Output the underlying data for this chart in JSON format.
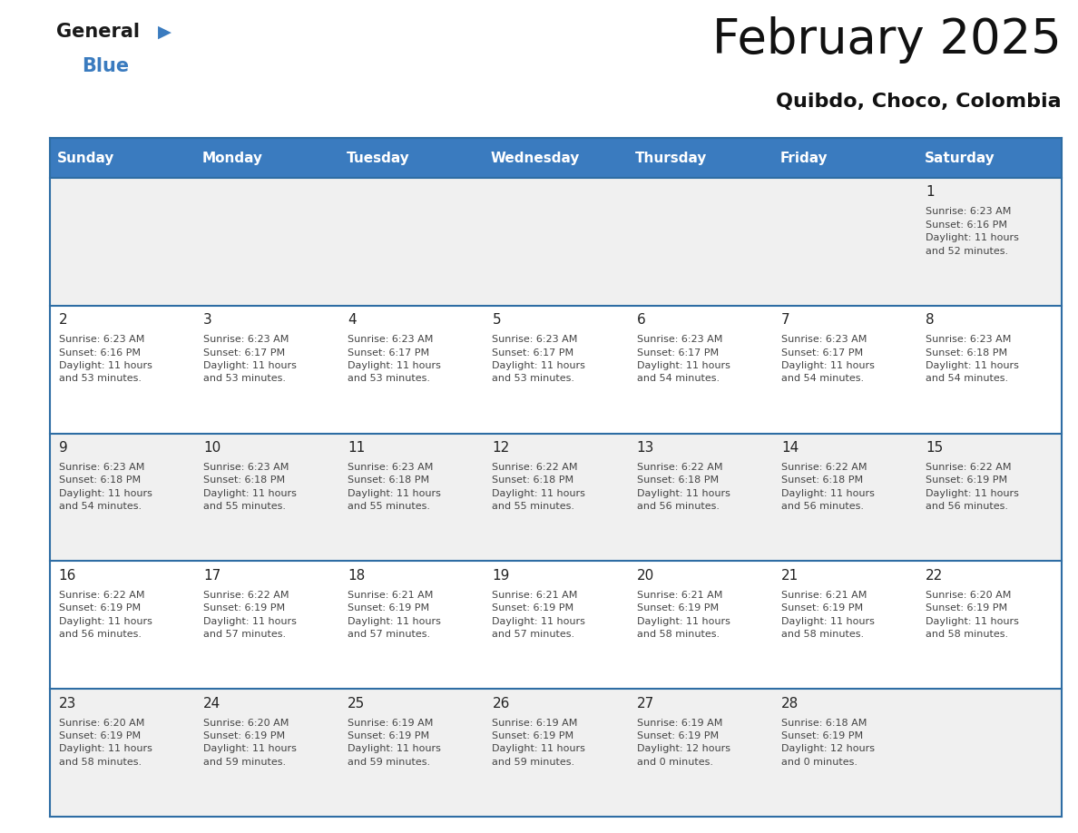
{
  "title": "February 2025",
  "subtitle": "Quibdo, Choco, Colombia",
  "header_bg_color": "#3A7BBF",
  "header_text_color": "#FFFFFF",
  "day_names": [
    "Sunday",
    "Monday",
    "Tuesday",
    "Wednesday",
    "Thursday",
    "Friday",
    "Saturday"
  ],
  "cell_bg_even": "#FFFFFF",
  "cell_bg_odd": "#F0F0F0",
  "grid_line_color": "#2E6DA4",
  "day_num_color": "#222222",
  "info_text_color": "#444444",
  "weeks": [
    [
      {
        "day": null,
        "info": null
      },
      {
        "day": null,
        "info": null
      },
      {
        "day": null,
        "info": null
      },
      {
        "day": null,
        "info": null
      },
      {
        "day": null,
        "info": null
      },
      {
        "day": null,
        "info": null
      },
      {
        "day": 1,
        "info": "Sunrise: 6:23 AM\nSunset: 6:16 PM\nDaylight: 11 hours\nand 52 minutes."
      }
    ],
    [
      {
        "day": 2,
        "info": "Sunrise: 6:23 AM\nSunset: 6:16 PM\nDaylight: 11 hours\nand 53 minutes."
      },
      {
        "day": 3,
        "info": "Sunrise: 6:23 AM\nSunset: 6:17 PM\nDaylight: 11 hours\nand 53 minutes."
      },
      {
        "day": 4,
        "info": "Sunrise: 6:23 AM\nSunset: 6:17 PM\nDaylight: 11 hours\nand 53 minutes."
      },
      {
        "day": 5,
        "info": "Sunrise: 6:23 AM\nSunset: 6:17 PM\nDaylight: 11 hours\nand 53 minutes."
      },
      {
        "day": 6,
        "info": "Sunrise: 6:23 AM\nSunset: 6:17 PM\nDaylight: 11 hours\nand 54 minutes."
      },
      {
        "day": 7,
        "info": "Sunrise: 6:23 AM\nSunset: 6:17 PM\nDaylight: 11 hours\nand 54 minutes."
      },
      {
        "day": 8,
        "info": "Sunrise: 6:23 AM\nSunset: 6:18 PM\nDaylight: 11 hours\nand 54 minutes."
      }
    ],
    [
      {
        "day": 9,
        "info": "Sunrise: 6:23 AM\nSunset: 6:18 PM\nDaylight: 11 hours\nand 54 minutes."
      },
      {
        "day": 10,
        "info": "Sunrise: 6:23 AM\nSunset: 6:18 PM\nDaylight: 11 hours\nand 55 minutes."
      },
      {
        "day": 11,
        "info": "Sunrise: 6:23 AM\nSunset: 6:18 PM\nDaylight: 11 hours\nand 55 minutes."
      },
      {
        "day": 12,
        "info": "Sunrise: 6:22 AM\nSunset: 6:18 PM\nDaylight: 11 hours\nand 55 minutes."
      },
      {
        "day": 13,
        "info": "Sunrise: 6:22 AM\nSunset: 6:18 PM\nDaylight: 11 hours\nand 56 minutes."
      },
      {
        "day": 14,
        "info": "Sunrise: 6:22 AM\nSunset: 6:18 PM\nDaylight: 11 hours\nand 56 minutes."
      },
      {
        "day": 15,
        "info": "Sunrise: 6:22 AM\nSunset: 6:19 PM\nDaylight: 11 hours\nand 56 minutes."
      }
    ],
    [
      {
        "day": 16,
        "info": "Sunrise: 6:22 AM\nSunset: 6:19 PM\nDaylight: 11 hours\nand 56 minutes."
      },
      {
        "day": 17,
        "info": "Sunrise: 6:22 AM\nSunset: 6:19 PM\nDaylight: 11 hours\nand 57 minutes."
      },
      {
        "day": 18,
        "info": "Sunrise: 6:21 AM\nSunset: 6:19 PM\nDaylight: 11 hours\nand 57 minutes."
      },
      {
        "day": 19,
        "info": "Sunrise: 6:21 AM\nSunset: 6:19 PM\nDaylight: 11 hours\nand 57 minutes."
      },
      {
        "day": 20,
        "info": "Sunrise: 6:21 AM\nSunset: 6:19 PM\nDaylight: 11 hours\nand 58 minutes."
      },
      {
        "day": 21,
        "info": "Sunrise: 6:21 AM\nSunset: 6:19 PM\nDaylight: 11 hours\nand 58 minutes."
      },
      {
        "day": 22,
        "info": "Sunrise: 6:20 AM\nSunset: 6:19 PM\nDaylight: 11 hours\nand 58 minutes."
      }
    ],
    [
      {
        "day": 23,
        "info": "Sunrise: 6:20 AM\nSunset: 6:19 PM\nDaylight: 11 hours\nand 58 minutes."
      },
      {
        "day": 24,
        "info": "Sunrise: 6:20 AM\nSunset: 6:19 PM\nDaylight: 11 hours\nand 59 minutes."
      },
      {
        "day": 25,
        "info": "Sunrise: 6:19 AM\nSunset: 6:19 PM\nDaylight: 11 hours\nand 59 minutes."
      },
      {
        "day": 26,
        "info": "Sunrise: 6:19 AM\nSunset: 6:19 PM\nDaylight: 11 hours\nand 59 minutes."
      },
      {
        "day": 27,
        "info": "Sunrise: 6:19 AM\nSunset: 6:19 PM\nDaylight: 12 hours\nand 0 minutes."
      },
      {
        "day": 28,
        "info": "Sunrise: 6:18 AM\nSunset: 6:19 PM\nDaylight: 12 hours\nand 0 minutes."
      },
      {
        "day": null,
        "info": null
      }
    ]
  ],
  "fig_width": 11.88,
  "fig_height": 9.18,
  "dpi": 100
}
